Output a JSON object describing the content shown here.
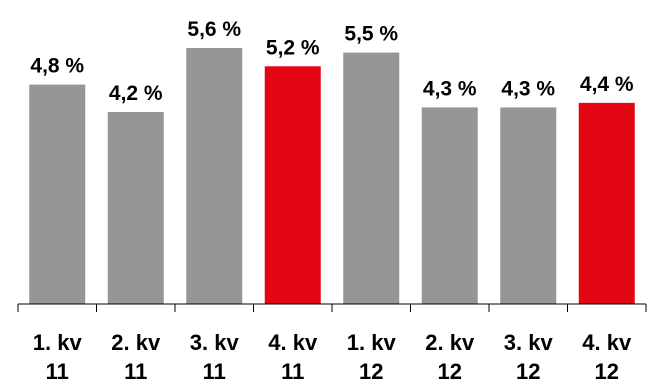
{
  "chart_data": {
    "type": "bar",
    "title": "",
    "xlabel": "",
    "ylabel": "",
    "categories": [
      [
        "1. kv",
        "11"
      ],
      [
        "2. kv",
        "11"
      ],
      [
        "3. kv",
        "11"
      ],
      [
        "4. kv",
        "11"
      ],
      [
        "1. kv",
        "12"
      ],
      [
        "2. kv",
        "12"
      ],
      [
        "3. kv",
        "12"
      ],
      [
        "4. kv",
        "12"
      ]
    ],
    "values": [
      4.8,
      4.2,
      5.6,
      5.2,
      5.5,
      4.3,
      4.3,
      4.4
    ],
    "data_labels": [
      "4,8 %",
      "4,2 %",
      "5,6 %",
      "5,2 %",
      "5,5 %",
      "4,3 %",
      "4,3 %",
      "4,4 %"
    ],
    "highlight": [
      false,
      false,
      false,
      true,
      false,
      false,
      false,
      true
    ],
    "ylim": [
      0,
      5.6
    ],
    "grid": false,
    "legend": "none",
    "colors": {
      "bar": "#969696",
      "highlight": "#e30613",
      "axis": "#000000"
    }
  }
}
